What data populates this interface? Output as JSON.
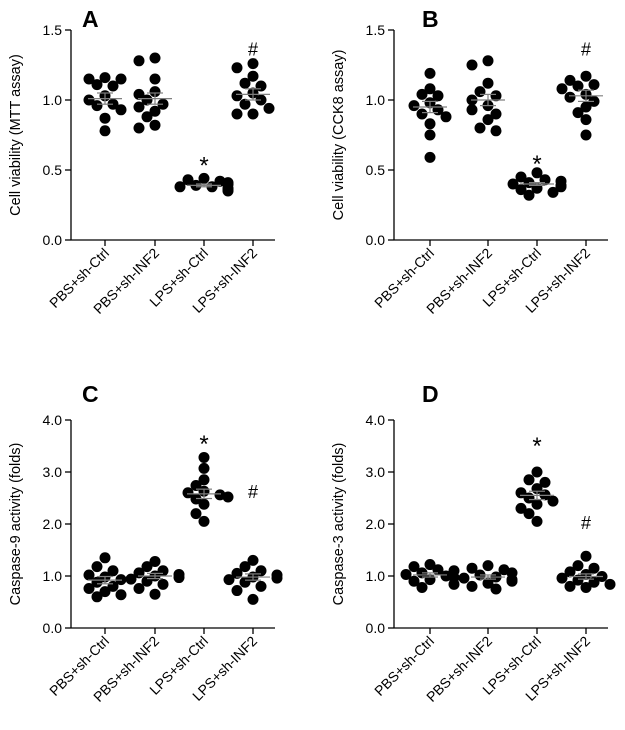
{
  "chart_data": [
    {
      "type": "scatter",
      "panel": "A",
      "ylabel": "Cell viability (MTT assay)",
      "ylim": [
        0,
        1.5
      ],
      "yticks": [
        "0.0",
        "0.5",
        "1.0",
        "1.5"
      ],
      "categories": [
        "PBS+sh-Ctrl",
        "PBS+sh-INF2",
        "LPS+sh-Ctrl",
        "LPS+sh-INF2"
      ],
      "means": [
        1.01,
        1.01,
        0.39,
        1.04
      ],
      "sems": [
        0.04,
        0.04,
        0.01,
        0.04
      ],
      "points": [
        [
          1.15,
          1.16,
          1.15,
          1.11,
          1.1,
          1.03,
          1.0,
          0.97,
          0.96,
          0.93,
          0.87,
          0.78
        ],
        [
          1.3,
          1.28,
          1.15,
          1.06,
          1.04,
          1.0,
          0.97,
          0.95,
          0.92,
          0.88,
          0.82,
          0.8
        ],
        [
          0.44,
          0.43,
          0.42,
          0.41,
          0.4,
          0.4,
          0.39,
          0.38,
          0.38,
          0.37,
          0.36,
          0.35
        ],
        [
          1.26,
          1.23,
          1.17,
          1.12,
          1.1,
          1.05,
          1.03,
          1.0,
          0.97,
          0.94,
          0.9,
          0.9
        ]
      ],
      "annotations": [
        {
          "group": 2,
          "text": "*",
          "y": 0.56
        },
        {
          "group": 3,
          "text": "#",
          "y": 1.36
        }
      ]
    },
    {
      "type": "scatter",
      "panel": "B",
      "ylabel": "Cell viability (CCK8 assay)",
      "ylim": [
        0,
        1.5
      ],
      "yticks": [
        "0.0",
        "0.5",
        "1.0",
        "1.5"
      ],
      "categories": [
        "PBS+sh-Ctrl",
        "PBS+sh-INF2",
        "LPS+sh-Ctrl",
        "LPS+sh-INF2"
      ],
      "means": [
        0.95,
        1.0,
        0.4,
        1.03
      ],
      "sems": [
        0.04,
        0.04,
        0.01,
        0.04
      ],
      "points": [
        [
          1.19,
          1.08,
          1.04,
          1.03,
          0.98,
          0.96,
          0.93,
          0.9,
          0.88,
          0.83,
          0.75,
          0.59
        ],
        [
          1.28,
          1.25,
          1.12,
          1.06,
          1.03,
          1.0,
          0.96,
          0.93,
          0.9,
          0.86,
          0.8,
          0.78
        ],
        [
          0.48,
          0.45,
          0.43,
          0.42,
          0.41,
          0.4,
          0.39,
          0.38,
          0.37,
          0.36,
          0.34,
          0.32
        ],
        [
          1.17,
          1.14,
          1.11,
          1.1,
          1.08,
          1.04,
          1.02,
          0.99,
          0.95,
          0.91,
          0.86,
          0.75
        ]
      ],
      "annotations": [
        {
          "group": 2,
          "text": "*",
          "y": 0.57
        },
        {
          "group": 3,
          "text": "#",
          "y": 1.36
        }
      ]
    },
    {
      "type": "scatter",
      "panel": "C",
      "ylabel": "Caspase-9 activity (folds)",
      "ylim": [
        0,
        4
      ],
      "yticks": [
        "0.0",
        "1.0",
        "2.0",
        "3.0",
        "4.0"
      ],
      "categories": [
        "PBS+sh-Ctrl",
        "PBS+sh-INF2",
        "LPS+sh-Ctrl",
        "LPS+sh-INF2"
      ],
      "means": [
        0.92,
        1.0,
        2.58,
        0.98
      ],
      "sems": [
        0.07,
        0.05,
        0.09,
        0.06
      ],
      "points": [
        [
          1.35,
          1.18,
          1.1,
          1.02,
          0.98,
          0.93,
          0.88,
          0.8,
          0.76,
          0.7,
          0.64,
          0.6
        ],
        [
          1.28,
          1.18,
          1.1,
          1.06,
          1.03,
          1.0,
          0.97,
          0.94,
          0.9,
          0.84,
          0.76,
          0.65
        ],
        [
          3.28,
          3.07,
          2.85,
          2.74,
          2.63,
          2.6,
          2.56,
          2.52,
          2.48,
          2.38,
          2.2,
          2.05
        ],
        [
          1.3,
          1.18,
          1.1,
          1.05,
          1.02,
          0.98,
          0.96,
          0.93,
          0.88,
          0.8,
          0.72,
          0.55
        ]
      ],
      "annotations": [
        {
          "group": 2,
          "text": "*",
          "y": 3.62
        },
        {
          "group": 3,
          "text": "#",
          "y": 2.62
        }
      ]
    },
    {
      "type": "scatter",
      "panel": "D",
      "ylabel": "Caspase-3 activity (folds)",
      "ylim": [
        0,
        4
      ],
      "yticks": [
        "0.0",
        "1.0",
        "2.0",
        "3.0",
        "4.0"
      ],
      "categories": [
        "PBS+sh-Ctrl",
        "PBS+sh-INF2",
        "LPS+sh-Ctrl",
        "LPS+sh-INF2"
      ],
      "means": [
        1.02,
        0.98,
        2.55,
        0.99
      ],
      "sems": [
        0.04,
        0.04,
        0.08,
        0.05
      ],
      "points": [
        [
          1.22,
          1.18,
          1.12,
          1.1,
          1.06,
          1.03,
          1.0,
          0.97,
          0.93,
          0.9,
          0.84,
          0.78
        ],
        [
          1.2,
          1.15,
          1.12,
          1.06,
          1.02,
          0.98,
          0.96,
          0.93,
          0.9,
          0.86,
          0.8,
          0.75
        ],
        [
          3.0,
          2.85,
          2.8,
          2.68,
          2.6,
          2.56,
          2.5,
          2.44,
          2.38,
          2.3,
          2.2,
          2.05
        ],
        [
          1.38,
          1.2,
          1.15,
          1.08,
          1.03,
          0.99,
          0.96,
          0.92,
          0.88,
          0.84,
          0.8,
          0.78
        ]
      ],
      "annotations": [
        {
          "group": 2,
          "text": "*",
          "y": 3.58
        },
        {
          "group": 3,
          "text": "#",
          "y": 2.02
        }
      ]
    }
  ]
}
